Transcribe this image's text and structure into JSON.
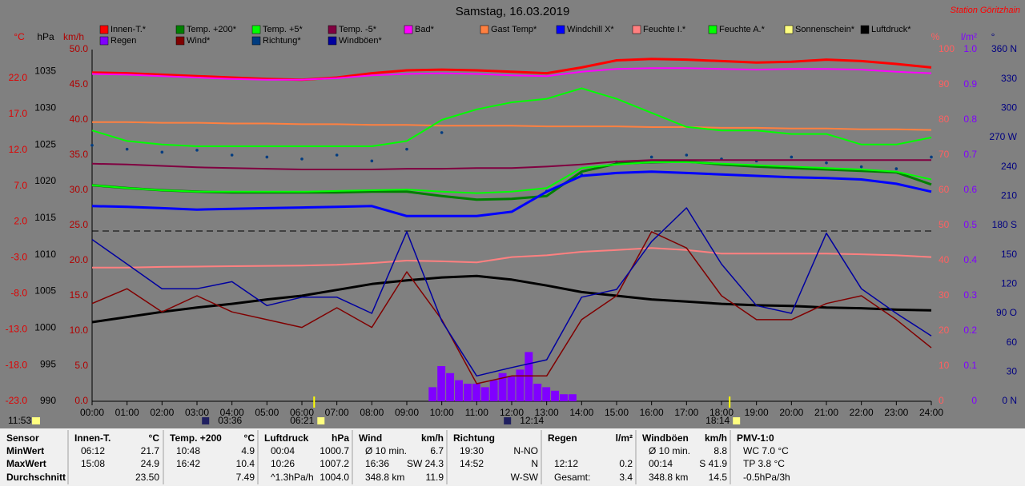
{
  "chart_data": {
    "type": "line",
    "title": "Samstag, 16.03.2019",
    "station": "Station Göritzhain",
    "xlim": [
      0,
      24
    ],
    "xticks": [
      {
        "value": 0,
        "label": "00:00"
      },
      {
        "value": 1,
        "label": "01:00"
      },
      {
        "value": 2,
        "label": "02:00"
      },
      {
        "value": 3,
        "label": "03:00"
      },
      {
        "value": 4,
        "label": "04:00"
      },
      {
        "value": 5,
        "label": "05:00"
      },
      {
        "value": 6,
        "label": "06:00"
      },
      {
        "value": 7,
        "label": "07:00"
      },
      {
        "value": 8,
        "label": "08:00"
      },
      {
        "value": 9,
        "label": "09:00"
      },
      {
        "value": 10,
        "label": "10:00"
      },
      {
        "value": 11,
        "label": "11:00"
      },
      {
        "value": 12,
        "label": "12:00"
      },
      {
        "value": 13,
        "label": "13:00"
      },
      {
        "value": 14,
        "label": "14:00"
      },
      {
        "value": 15,
        "label": "15:00"
      },
      {
        "value": 16,
        "label": "16:00"
      },
      {
        "value": 17,
        "label": "17:00"
      },
      {
        "value": 18,
        "label": "18:00"
      },
      {
        "value": 19,
        "label": "19:00"
      },
      {
        "value": 20,
        "label": "20:00"
      },
      {
        "value": 21,
        "label": "21:00"
      },
      {
        "value": 22,
        "label": "22:00"
      },
      {
        "value": 23,
        "label": "23:00"
      },
      {
        "value": 24,
        "label": "24:00"
      }
    ],
    "x": [
      0,
      1,
      2,
      3,
      4,
      5,
      6,
      7,
      8,
      9,
      10,
      11,
      12,
      13,
      14,
      15,
      16,
      17,
      18,
      19,
      20,
      21,
      22,
      23,
      24
    ],
    "axes": {
      "c": {
        "label": "°C",
        "color": "#e00000",
        "lim": [
          -23,
          26
        ],
        "ticks": [
          {
            "value": -23,
            "label": "-23.0"
          },
          {
            "value": -18,
            "label": "-18.0"
          },
          {
            "value": -13,
            "label": "-13.0"
          },
          {
            "value": -8,
            "label": "-8.0"
          },
          {
            "value": -3,
            "label": "-3.0"
          },
          {
            "value": 2,
            "label": "2.0"
          },
          {
            "value": 7,
            "label": "7.0"
          },
          {
            "value": 12,
            "label": "12.0"
          },
          {
            "value": 17,
            "label": "17.0"
          },
          {
            "value": 22,
            "label": "22.0"
          }
        ]
      },
      "hpa": {
        "label": "hPa",
        "color": "#000000",
        "lim": [
          990,
          1038
        ],
        "ticks": [
          990,
          995,
          1000,
          1005,
          1010,
          1015,
          1020,
          1025,
          1030,
          1035
        ]
      },
      "kmh": {
        "label": "km/h",
        "color": "#b00000",
        "lim": [
          0,
          50
        ],
        "ticks": [
          {
            "value": 0,
            "label": "0.0"
          },
          {
            "value": 5,
            "label": "5.0"
          },
          {
            "value": 10,
            "label": "10.0"
          },
          {
            "value": 15,
            "label": "15.0"
          },
          {
            "value": 20,
            "label": "20.0"
          },
          {
            "value": 25,
            "label": "25.0"
          },
          {
            "value": 30,
            "label": "30.0"
          },
          {
            "value": 35,
            "label": "35.0"
          },
          {
            "value": 40,
            "label": "40.0"
          },
          {
            "value": 45,
            "label": "45.0"
          },
          {
            "value": 50,
            "label": "50.0"
          }
        ]
      },
      "pct": {
        "label": "%",
        "color": "#ff6060",
        "lim": [
          0,
          100
        ],
        "ticks": [
          0,
          10,
          20,
          30,
          40,
          50,
          60,
          70,
          80,
          90,
          100
        ]
      },
      "lm2": {
        "label": "l/m²",
        "color": "#8000ff",
        "lim": [
          0,
          1
        ],
        "ticks": [
          0,
          0.1,
          0.2,
          0.3,
          0.4,
          0.5,
          0.6,
          0.7,
          0.8,
          0.9,
          {
            "value": 1,
            "label": "1.0"
          }
        ]
      },
      "deg": {
        "label": "°",
        "color": "#000080",
        "lim": [
          0,
          360
        ],
        "ticks": [
          {
            "value": 0,
            "label": "0 N"
          },
          30,
          60,
          {
            "value": 90,
            "label": "90 O"
          },
          120,
          150,
          {
            "value": 180,
            "label": "180 S"
          },
          210,
          240,
          {
            "value": 270,
            "label": "270 W"
          },
          300,
          330,
          {
            "value": 360,
            "label": "360 N"
          }
        ]
      }
    },
    "series": [
      {
        "name": "Innen-T.*",
        "color": "#ff0000",
        "axis": "c",
        "kind": "line",
        "width": 3,
        "values": [
          22.8,
          22.7,
          22.5,
          22.3,
          22.1,
          21.9,
          21.8,
          22.1,
          22.7,
          23.1,
          23.2,
          23.1,
          22.9,
          22.7,
          23.5,
          24.5,
          24.7,
          24.6,
          24.4,
          24.2,
          24.3,
          24.6,
          24.4,
          24.0,
          23.5
        ]
      },
      {
        "name": "Temp. +200*",
        "color": "#008000",
        "axis": "c",
        "kind": "line",
        "width": 3,
        "values": [
          7.1,
          6.7,
          6.4,
          6.2,
          6.1,
          6.1,
          6.1,
          6.1,
          6.2,
          6.2,
          5.6,
          5.1,
          5.2,
          5.6,
          9.0,
          10.1,
          10.3,
          10.4,
          10.0,
          9.7,
          9.5,
          9.3,
          9.1,
          8.9,
          7.2
        ]
      },
      {
        "name": "Temp. +5*",
        "color": "#00ff00",
        "axis": "c",
        "kind": "line",
        "width": 2,
        "values": [
          7.1,
          6.7,
          6.4,
          6.2,
          6.2,
          6.2,
          6.2,
          6.3,
          6.4,
          6.5,
          6.2,
          6.0,
          6.2,
          6.7,
          9.5,
          10.0,
          10.3,
          10.3,
          10.1,
          9.9,
          9.7,
          9.5,
          9.3,
          9.0,
          7.9
        ]
      },
      {
        "name": "Temp. -5*",
        "color": "#800040",
        "axis": "c",
        "kind": "line",
        "width": 2,
        "values": [
          10.1,
          10.0,
          9.8,
          9.6,
          9.5,
          9.4,
          9.3,
          9.3,
          9.3,
          9.4,
          9.4,
          9.5,
          9.5,
          9.7,
          10.0,
          10.4,
          10.6,
          10.6,
          10.6,
          10.6,
          10.6,
          10.6,
          10.6,
          10.6,
          10.6
        ]
      },
      {
        "name": "Bad*",
        "color": "#ff00ff",
        "axis": "c",
        "kind": "line",
        "width": 2,
        "values": [
          22.6,
          22.5,
          22.3,
          22.1,
          21.9,
          21.8,
          21.8,
          22.0,
          22.4,
          22.6,
          22.7,
          22.6,
          22.4,
          22.3,
          22.9,
          23.3,
          23.4,
          23.4,
          23.3,
          23.2,
          23.3,
          23.3,
          23.2,
          22.9,
          22.7
        ]
      },
      {
        "name": "Gast Temp*",
        "color": "#ff8040",
        "axis": "c",
        "kind": "line",
        "width": 2,
        "values": [
          15.9,
          15.9,
          15.8,
          15.8,
          15.7,
          15.7,
          15.6,
          15.6,
          15.5,
          15.5,
          15.4,
          15.4,
          15.4,
          15.3,
          15.3,
          15.3,
          15.2,
          15.2,
          15.1,
          15.1,
          15.0,
          15.0,
          14.9,
          14.9,
          14.8
        ]
      },
      {
        "name": "Windchill X*",
        "color": "#0000ff",
        "axis": "c",
        "kind": "line",
        "width": 3,
        "values": [
          4.2,
          4.1,
          3.9,
          3.7,
          3.8,
          3.9,
          4.0,
          4.1,
          4.2,
          2.8,
          2.8,
          2.8,
          3.4,
          6.2,
          8.4,
          8.8,
          9.0,
          8.8,
          8.6,
          8.4,
          8.2,
          8.1,
          7.9,
          7.3,
          6.2
        ]
      },
      {
        "name": "Feuchte I.*",
        "color": "#ff8080",
        "axis": "pct",
        "kind": "line",
        "width": 2,
        "values": [
          38,
          38,
          38.2,
          38.3,
          38.4,
          38.5,
          38.6,
          38.8,
          39.3,
          40,
          39.8,
          39.5,
          41,
          41.5,
          42.5,
          43,
          43.6,
          43,
          42,
          42,
          42,
          42,
          41.8,
          41.5,
          41
        ]
      },
      {
        "name": "Feuchte A.*",
        "color": "#00ff00",
        "axis": "pct",
        "kind": "line",
        "width": 2,
        "values": [
          77,
          74,
          73,
          72.5,
          72.5,
          72.5,
          72.5,
          72.5,
          72.5,
          74,
          80,
          83,
          85,
          86,
          89,
          86,
          82,
          78,
          77,
          77,
          76,
          76,
          73,
          73,
          75
        ]
      },
      {
        "name": "Sonnenschein*",
        "color": "#ffff80",
        "axis": "pct",
        "kind": "line",
        "width": 2,
        "values": [
          null,
          null,
          null,
          null,
          null,
          null,
          null,
          null,
          null,
          null,
          null,
          null,
          null,
          null,
          null,
          null,
          null,
          null,
          null,
          null,
          null,
          null,
          null,
          null,
          null
        ]
      },
      {
        "name": "Luftdruck*",
        "color": "#000000",
        "axis": "hpa",
        "kind": "line",
        "width": 3,
        "values": [
          1000.8,
          1001.5,
          1002.2,
          1002.8,
          1003.3,
          1003.9,
          1004.4,
          1005.2,
          1006.0,
          1006.5,
          1006.9,
          1007.1,
          1006.6,
          1005.8,
          1004.9,
          1004.4,
          1003.9,
          1003.6,
          1003.3,
          1003.1,
          1003.0,
          1002.8,
          1002.7,
          1002.5,
          1002.4
        ]
      },
      {
        "name": "Regen",
        "color": "#8000ff",
        "axis": "lm2",
        "kind": "bars",
        "x": [
          9.75,
          10,
          10.25,
          10.5,
          10.75,
          11,
          11.25,
          11.5,
          11.75,
          12,
          12.25,
          12.5,
          12.75,
          13,
          13.25,
          13.5,
          13.75
        ],
        "values": [
          0.04,
          0.1,
          0.08,
          0.06,
          0.05,
          0.05,
          0.04,
          0.06,
          0.08,
          0.07,
          0.09,
          0.14,
          0.05,
          0.04,
          0.03,
          0.02,
          0.02
        ]
      },
      {
        "name": "Wind*",
        "color": "#800000",
        "axis": "kmh",
        "kind": "line",
        "width": 1.5,
        "values": [
          13.9,
          16,
          12.7,
          15,
          12.7,
          11.6,
          10.5,
          13.3,
          10.5,
          18.4,
          11.6,
          2.5,
          3.6,
          3.6,
          11.6,
          15,
          24.1,
          21.8,
          15,
          11.6,
          11.6,
          13.9,
          15,
          11.6,
          7.6
        ]
      },
      {
        "name": "Richtung*",
        "color": "#003c80",
        "axis": "deg",
        "kind": "dots",
        "values": [
          262,
          258,
          255,
          257,
          252,
          250,
          248,
          252,
          246,
          258,
          275,
          null,
          null,
          215,
          232,
          245,
          250,
          252,
          248,
          246,
          250,
          244,
          240,
          238,
          250
        ]
      },
      {
        "name": "Windböen*",
        "color": "#0000a0",
        "axis": "kmh",
        "kind": "line",
        "width": 1.5,
        "values": [
          23,
          19.5,
          16,
          16,
          17,
          13.6,
          14.8,
          14.8,
          12.5,
          24.1,
          11.4,
          3.6,
          4.8,
          5.9,
          14.8,
          15.9,
          22.7,
          27.5,
          19.5,
          13.6,
          12.5,
          23.9,
          16,
          12.5,
          9.3
        ]
      }
    ],
    "astro": {
      "day_length": "11:53",
      "sunrise": "06:21",
      "sunset": "18:14",
      "moon_a": "03:36",
      "moon_b": "12:14"
    }
  },
  "table": {
    "columns": [
      {
        "title": "Sensor",
        "rows": [
          {
            "left": "MinWert"
          },
          {
            "left": "MaxWert"
          },
          {
            "left": "Durchschnitt"
          }
        ]
      },
      {
        "title": "Innen-T.",
        "unit": "°C",
        "rows": [
          {
            "left": "06:12",
            "right": "21.7"
          },
          {
            "left": "15:08",
            "right": "24.9"
          },
          {
            "right": "23.50"
          }
        ]
      },
      {
        "title": "Temp. +200",
        "unit": "°C",
        "rows": [
          {
            "left": "10:48",
            "right": "4.9"
          },
          {
            "left": "16:42",
            "right": "10.4"
          },
          {
            "right": "7.49"
          }
        ]
      },
      {
        "title": "Luftdruck",
        "unit": "hPa",
        "rows": [
          {
            "left": "00:04",
            "right": "1000.7"
          },
          {
            "left": "10:26",
            "right": "1007.2"
          },
          {
            "left": "^1.3hPa/h",
            "right": "1004.0"
          }
        ]
      },
      {
        "title": "Wind",
        "unit": "km/h",
        "rows": [
          {
            "left": "Ø 10 min.",
            "right": "6.7"
          },
          {
            "left": "16:36",
            "right": "SW 24.3"
          },
          {
            "left": "348.8 km",
            "right": "11.9"
          }
        ]
      },
      {
        "title": "Richtung",
        "rows": [
          {
            "left": "19:30",
            "right": "N-NO"
          },
          {
            "left": "14:52",
            "right": "N"
          },
          {
            "right": "W-SW"
          }
        ]
      },
      {
        "title": "Regen",
        "unit": "l/m²",
        "rows": [
          {},
          {
            "left": "12:12",
            "right": "0.2"
          },
          {
            "left": "Gesamt:",
            "right": "3.4"
          }
        ]
      },
      {
        "title": "Windböen",
        "unit": "km/h",
        "rows": [
          {
            "left": "Ø 10 min.",
            "right": "8.8"
          },
          {
            "left": "00:14",
            "right": "S 41.9"
          },
          {
            "left": "348.8 km",
            "right": "14.5"
          }
        ]
      },
      {
        "title": "PMV-1:0",
        "rows": [
          {
            "left": "WC 7.0 °C"
          },
          {
            "left": "TP 3.8 °C"
          },
          {
            "left": "-0.5hPa/3h"
          }
        ]
      }
    ]
  }
}
